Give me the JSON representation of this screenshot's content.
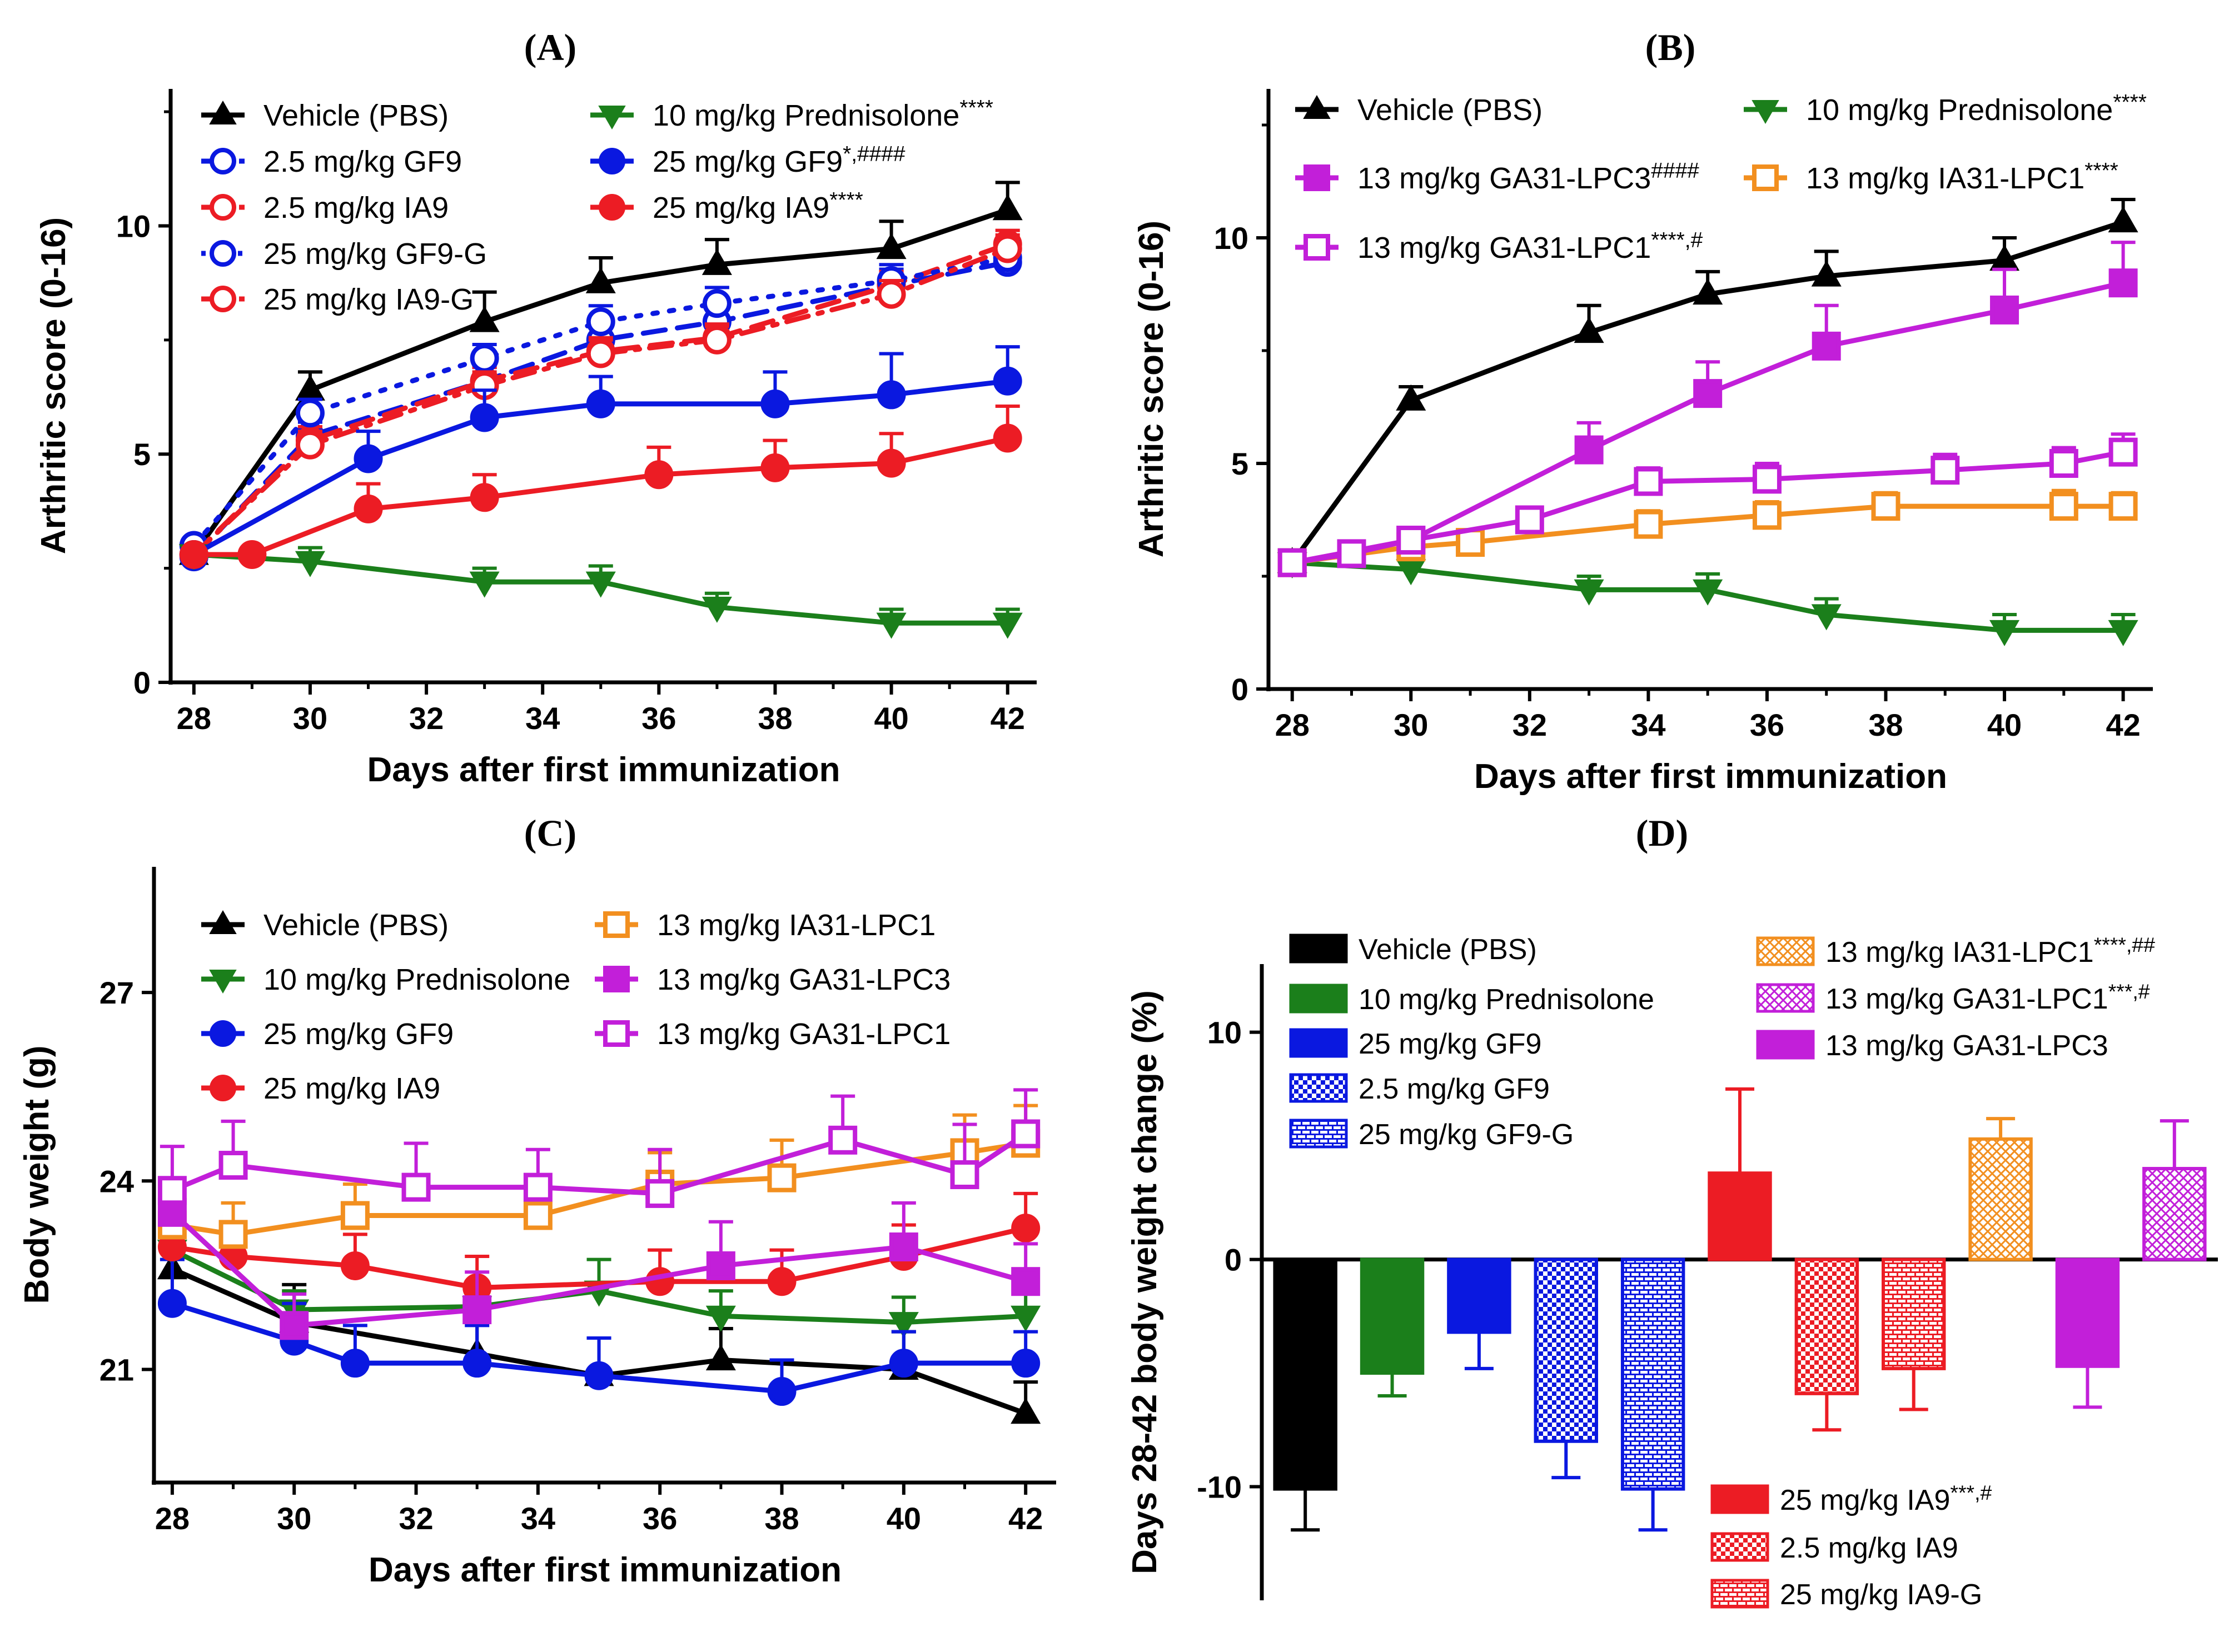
{
  "chart_data": [
    {
      "panel": "(A)",
      "type": "line",
      "xlabel": "Days after first immunization",
      "ylabel": "Arthritic score (0-16)",
      "xlim": [
        27.6,
        42.5
      ],
      "ylim": [
        0,
        13
      ],
      "xticks": [
        28,
        30,
        32,
        34,
        36,
        38,
        40,
        42
      ],
      "yticks": [
        0,
        5,
        10
      ],
      "series": [
        {
          "name": "Vehicle (PBS)",
          "sup": "",
          "color": "#000000",
          "marker": "triangle-up",
          "filled": true,
          "dash": "solid",
          "x": [
            28,
            30,
            33,
            35,
            37,
            40,
            42
          ],
          "y": [
            2.8,
            6.4,
            7.9,
            8.75,
            9.15,
            9.5,
            10.35
          ],
          "err": [
            0,
            0.4,
            0.65,
            0.55,
            0.55,
            0.6,
            0.6
          ]
        },
        {
          "name": "2.5 mg/kg GF9",
          "sup": "",
          "color": "#0a18e0",
          "marker": "circle",
          "filled": false,
          "dash": "dash",
          "x": [
            28,
            30,
            33,
            35,
            37,
            40,
            42
          ],
          "y": [
            2.75,
            5.4,
            6.6,
            7.5,
            7.9,
            8.7,
            9.2
          ],
          "err": [
            0,
            0.3,
            0.3,
            0.35,
            0.35,
            0.35,
            0.3
          ]
        },
        {
          "name": "2.5 mg/kg IA9",
          "sup": "",
          "color": "#ec1c24",
          "marker": "circle",
          "filled": false,
          "dash": "dash",
          "x": [
            28,
            30,
            33,
            35,
            37,
            40,
            42
          ],
          "y": [
            2.8,
            5.3,
            6.6,
            7.25,
            7.55,
            8.7,
            9.6
          ],
          "err": [
            0,
            0.3,
            0.3,
            0.3,
            0.3,
            0.3,
            0.3
          ]
        },
        {
          "name": "25 mg/kg GF9-G",
          "sup": "",
          "color": "#0a18e0",
          "marker": "circle",
          "filled": false,
          "dash": "dot",
          "x": [
            28,
            30,
            33,
            35,
            37,
            40,
            42
          ],
          "y": [
            3.0,
            5.9,
            7.1,
            7.9,
            8.3,
            8.8,
            9.3
          ],
          "err": [
            0,
            0.3,
            0.3,
            0.35,
            0.35,
            0.35,
            0.35
          ]
        },
        {
          "name": "25 mg/kg IA9-G",
          "sup": "",
          "color": "#ec1c24",
          "marker": "circle",
          "filled": false,
          "dash": "dashdot",
          "x": [
            28,
            30,
            33,
            35,
            37,
            40,
            42
          ],
          "y": [
            2.8,
            5.2,
            6.5,
            7.2,
            7.5,
            8.5,
            9.5
          ],
          "err": [
            0,
            0.3,
            0.3,
            0.3,
            0.3,
            0.3,
            0.3
          ]
        },
        {
          "name": "10 mg/kg Prednisolone",
          "sup": "****",
          "color": "#1b7f1b",
          "marker": "triangle-down",
          "filled": true,
          "dash": "solid",
          "x": [
            28,
            30,
            33,
            35,
            37,
            40,
            42
          ],
          "y": [
            2.8,
            2.65,
            2.2,
            2.2,
            1.65,
            1.3,
            1.3
          ],
          "err": [
            0,
            0.3,
            0.3,
            0.35,
            0.3,
            0.3,
            0.3
          ]
        },
        {
          "name": "25 mg/kg GF9",
          "sup": "*,####",
          "color": "#0a18e0",
          "marker": "circle",
          "filled": true,
          "dash": "solid",
          "x": [
            28,
            31,
            33,
            35,
            38,
            40,
            42
          ],
          "y": [
            2.8,
            4.9,
            5.8,
            6.1,
            6.1,
            6.3,
            6.6
          ],
          "err": [
            0,
            0.6,
            0.6,
            0.6,
            0.7,
            0.9,
            0.75
          ]
        },
        {
          "name": "25 mg/kg IA9",
          "sup": "****",
          "color": "#ec1c24",
          "marker": "circle",
          "filled": true,
          "dash": "solid",
          "x": [
            28,
            29,
            31,
            33,
            36,
            38,
            40,
            42
          ],
          "y": [
            2.8,
            2.8,
            3.8,
            4.05,
            4.55,
            4.7,
            4.8,
            5.35
          ],
          "err": [
            0,
            0,
            0.55,
            0.5,
            0.6,
            0.6,
            0.65,
            0.7
          ]
        }
      ]
    },
    {
      "panel": "(B)",
      "type": "line",
      "xlabel": "Days after first immunization",
      "ylabel": "Arthritic score (0-16)",
      "xlim": [
        27.6,
        42.5
      ],
      "ylim": [
        0,
        13.3
      ],
      "xticks": [
        28,
        30,
        32,
        34,
        36,
        38,
        40,
        42
      ],
      "yticks": [
        0,
        5,
        10
      ],
      "series": [
        {
          "name": "Vehicle (PBS)",
          "sup": "",
          "color": "#000000",
          "marker": "triangle-up",
          "filled": true,
          "dash": "solid",
          "x": [
            28,
            30,
            33,
            35,
            37,
            40,
            42
          ],
          "y": [
            2.8,
            6.4,
            7.9,
            8.75,
            9.15,
            9.5,
            10.35
          ],
          "err": [
            0,
            0.3,
            0.6,
            0.5,
            0.55,
            0.5,
            0.5
          ]
        },
        {
          "name": "10 mg/kg Prednisolone",
          "sup": "****",
          "color": "#1b7f1b",
          "marker": "triangle-down",
          "filled": true,
          "dash": "solid",
          "x": [
            28,
            30,
            33,
            35,
            37,
            40,
            42
          ],
          "y": [
            2.8,
            2.65,
            2.2,
            2.2,
            1.65,
            1.3,
            1.3
          ],
          "err": [
            0,
            0.3,
            0.3,
            0.35,
            0.35,
            0.35,
            0.35
          ]
        },
        {
          "name": "13 mg/kg GA31-LPC3",
          "sup": "####",
          "color": "#c21fd9",
          "marker": "square",
          "filled": true,
          "dash": "solid",
          "x": [
            28,
            30,
            33,
            35,
            37,
            40,
            42
          ],
          "y": [
            2.8,
            3.3,
            5.3,
            6.55,
            7.6,
            8.4,
            9.0
          ],
          "err": [
            0,
            0,
            0.6,
            0.7,
            0.9,
            0.9,
            0.9
          ]
        },
        {
          "name": "13 mg/kg IA31-LPC1",
          "sup": "****",
          "color": "#f28f1f",
          "marker": "square",
          "filled": false,
          "dash": "solid",
          "x": [
            28,
            30,
            31,
            34,
            36,
            38,
            41,
            42
          ],
          "y": [
            2.8,
            3.15,
            3.25,
            3.65,
            3.85,
            4.05,
            4.05,
            4.05
          ],
          "err": [
            0,
            0,
            0.2,
            0.3,
            0.3,
            0.3,
            0.35,
            0.3
          ]
        },
        {
          "name": "13 mg/kg GA31-LPC1",
          "sup": "****,#",
          "color": "#c21fd9",
          "marker": "square",
          "filled": false,
          "dash": "solid",
          "x": [
            28,
            29,
            30,
            32,
            34,
            36,
            39,
            41,
            42
          ],
          "y": [
            2.8,
            3.0,
            3.3,
            3.75,
            4.6,
            4.65,
            4.85,
            5.0,
            5.25
          ],
          "err": [
            0,
            0,
            0,
            0.25,
            0.3,
            0.35,
            0.35,
            0.35,
            0.4
          ]
        }
      ]
    },
    {
      "panel": "(C)",
      "type": "line",
      "xlabel": "Days after first immunization",
      "ylabel": "Body weight (g)",
      "xlim": [
        27.7,
        42.5
      ],
      "ylim": [
        19.2,
        29.0
      ],
      "xticks": [
        28,
        30,
        32,
        34,
        36,
        38,
        40,
        42
      ],
      "yticks": [
        21,
        24,
        27
      ],
      "series": [
        {
          "name": "Vehicle (PBS)",
          "sup": "",
          "color": "#000000",
          "marker": "triangle-up",
          "filled": true,
          "dash": "solid",
          "x": [
            28,
            30,
            33,
            35,
            37,
            40,
            42
          ],
          "y": [
            22.6,
            21.75,
            21.25,
            20.9,
            21.15,
            21.0,
            20.3
          ],
          "err": [
            0.4,
            0.6,
            0.7,
            0.6,
            0.5,
            0.6,
            0.5
          ]
        },
        {
          "name": "10 mg/kg Prednisolone",
          "sup": "",
          "color": "#1b7f1b",
          "marker": "triangle-down",
          "filled": true,
          "dash": "solid",
          "x": [
            28,
            30,
            33,
            35,
            37,
            40,
            42
          ],
          "y": [
            22.9,
            21.95,
            22.0,
            22.25,
            21.85,
            21.75,
            21.85
          ],
          "err": [
            0.4,
            0.3,
            0.4,
            0.5,
            0.4,
            0.4,
            0.4
          ]
        },
        {
          "name": "25 mg/kg GF9",
          "sup": "",
          "color": "#0a18e0",
          "marker": "circle",
          "filled": true,
          "dash": "solid",
          "x": [
            28,
            30,
            31,
            33,
            35,
            38,
            40,
            42
          ],
          "y": [
            22.05,
            21.45,
            21.1,
            21.1,
            20.9,
            20.65,
            21.1,
            21.1
          ],
          "err": [
            0.7,
            0.6,
            0.6,
            0.6,
            0.6,
            0.5,
            0.5,
            0.5
          ]
        },
        {
          "name": "25 mg/kg IA9",
          "sup": "",
          "color": "#ec1c24",
          "marker": "circle",
          "filled": true,
          "dash": "solid",
          "x": [
            28,
            29,
            31,
            33,
            36,
            38,
            40,
            42
          ],
          "y": [
            22.95,
            22.8,
            22.65,
            22.3,
            22.4,
            22.4,
            22.8,
            23.25
          ],
          "err": [
            0.5,
            0.4,
            0.5,
            0.5,
            0.5,
            0.5,
            0.5,
            0.55
          ]
        },
        {
          "name": "13 mg/kg IA31-LPC1",
          "sup": "",
          "color": "#f28f1f",
          "marker": "square",
          "filled": false,
          "dash": "solid",
          "x": [
            28,
            29,
            31,
            34,
            36,
            38,
            41,
            42
          ],
          "y": [
            23.3,
            23.15,
            23.45,
            23.45,
            23.95,
            24.05,
            24.45,
            24.6
          ],
          "err": [
            0.5,
            0.5,
            0.5,
            0.5,
            0.5,
            0.6,
            0.6,
            0.6
          ]
        },
        {
          "name": "13 mg/kg GA31-LPC3",
          "sup": "",
          "color": "#c21fd9",
          "marker": "square",
          "filled": true,
          "dash": "solid",
          "x": [
            28,
            30,
            33,
            37,
            40,
            42
          ],
          "y": [
            23.5,
            21.7,
            21.95,
            22.65,
            22.95,
            22.4
          ],
          "err": [
            0.5,
            0.5,
            0.6,
            0.7,
            0.7,
            0.6
          ]
        },
        {
          "name": "13 mg/kg GA31-LPC1",
          "sup": "",
          "color": "#c21fd9",
          "marker": "square",
          "filled": false,
          "dash": "solid",
          "x": [
            28,
            29,
            32,
            34,
            36,
            39,
            41,
            42
          ],
          "y": [
            23.85,
            24.25,
            23.9,
            23.9,
            23.8,
            24.65,
            24.1,
            24.75
          ],
          "err": [
            0.7,
            0.7,
            0.7,
            0.6,
            0.7,
            0.7,
            0.8,
            0.7
          ]
        }
      ]
    },
    {
      "panel": "(D)",
      "type": "bar",
      "xlabel": "",
      "ylabel": "Days 28-42 body weight change (%)",
      "ylim": [
        -15,
        13
      ],
      "yticks": [
        -10,
        0,
        10
      ],
      "bars": [
        {
          "name": "Vehicle (PBS)",
          "sup": "",
          "value": -10.1,
          "err": 1.8,
          "color": "#000000",
          "pattern": "solid"
        },
        {
          "name": "10 mg/kg Prednisolone",
          "sup": "",
          "value": -5.0,
          "err": 1.0,
          "color": "#1b7f1b",
          "pattern": "solid"
        },
        {
          "name": "25 mg/kg GF9",
          "sup": "",
          "value": -3.2,
          "err": 1.6,
          "color": "#0a18e0",
          "pattern": "solid"
        },
        {
          "name": "2.5 mg/kg GF9",
          "sup": "",
          "value": -8.0,
          "err": 1.6,
          "color": "#0a18e0",
          "pattern": "checker"
        },
        {
          "name": "25 mg/kg GF9-G",
          "sup": "",
          "value": -10.1,
          "err": 1.8,
          "color": "#0a18e0",
          "pattern": "brick"
        },
        {
          "name": "25 mg/kg IA9",
          "sup": "***,#",
          "value": 3.8,
          "err": 3.7,
          "color": "#ec1c24",
          "pattern": "solid"
        },
        {
          "name": "2.5 mg/kg IA9",
          "sup": "",
          "value": -5.9,
          "err": 1.6,
          "color": "#ec1c24",
          "pattern": "checker"
        },
        {
          "name": "25 mg/kg IA9-G",
          "sup": "",
          "value": -4.8,
          "err": 1.8,
          "color": "#ec1c24",
          "pattern": "brick"
        },
        {
          "name": "13 mg/kg IA31-LPC1",
          "sup": "****,##",
          "value": 5.3,
          "err": 0.9,
          "color": "#f28f1f",
          "pattern": "crosshatch"
        },
        {
          "name": "13 mg/kg GA31-LPC3",
          "sup": "",
          "value": -4.7,
          "err": 1.8,
          "color": "#c21fd9",
          "pattern": "solid"
        },
        {
          "name": "13 mg/kg GA31-LPC1",
          "sup": "***,#",
          "value": 4.0,
          "err": 2.1,
          "color": "#c21fd9",
          "pattern": "crosshatch"
        }
      ]
    }
  ]
}
